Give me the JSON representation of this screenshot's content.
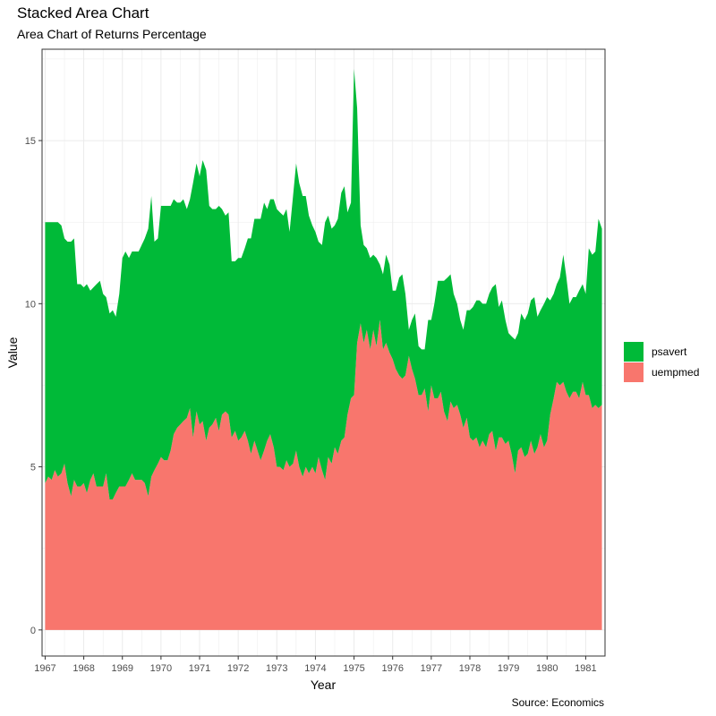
{
  "chart_data": {
    "type": "area",
    "stacked": true,
    "title": "Stacked Area Chart",
    "subtitle": "Area Chart of Returns Percentage",
    "caption": "Source: Economics",
    "xlabel": "Year",
    "ylabel": "Value",
    "xlim": [
      1966.92,
      1981.5
    ],
    "ylim": [
      -0.8,
      17.8
    ],
    "x_ticks": [
      1967,
      1968,
      1969,
      1970,
      1971,
      1972,
      1973,
      1974,
      1975,
      1976,
      1977,
      1978,
      1979,
      1980,
      1981
    ],
    "x_tick_labels": [
      "1967",
      "1968",
      "1969",
      "1970",
      "1971",
      "1972",
      "1973",
      "1974",
      "1975",
      "1976",
      "1977",
      "1978",
      "1979",
      "1980",
      "1981"
    ],
    "y_ticks": [
      0,
      5,
      10,
      15
    ],
    "y_tick_labels": [
      "0",
      "5",
      "10",
      "15"
    ],
    "grid": true,
    "legend_position": "right",
    "x": [
      1967.0,
      1967.08,
      1967.17,
      1967.25,
      1967.33,
      1967.42,
      1967.5,
      1967.58,
      1967.67,
      1967.75,
      1967.83,
      1967.92,
      1968.0,
      1968.08,
      1968.17,
      1968.25,
      1968.33,
      1968.42,
      1968.5,
      1968.58,
      1968.67,
      1968.75,
      1968.83,
      1968.92,
      1969.0,
      1969.08,
      1969.17,
      1969.25,
      1969.33,
      1969.42,
      1969.5,
      1969.58,
      1969.67,
      1969.75,
      1969.83,
      1969.92,
      1970.0,
      1970.08,
      1970.17,
      1970.25,
      1970.33,
      1970.42,
      1970.5,
      1970.58,
      1970.67,
      1970.75,
      1970.83,
      1970.92,
      1971.0,
      1971.08,
      1971.17,
      1971.25,
      1971.33,
      1971.42,
      1971.5,
      1971.58,
      1971.67,
      1971.75,
      1971.83,
      1971.92,
      1972.0,
      1972.08,
      1972.17,
      1972.25,
      1972.33,
      1972.42,
      1972.5,
      1972.58,
      1972.67,
      1972.75,
      1972.83,
      1972.92,
      1973.0,
      1973.08,
      1973.17,
      1973.25,
      1973.33,
      1973.42,
      1973.5,
      1973.58,
      1973.67,
      1973.75,
      1973.83,
      1973.92,
      1974.0,
      1974.08,
      1974.17,
      1974.25,
      1974.33,
      1974.42,
      1974.5,
      1974.58,
      1974.67,
      1974.75,
      1974.83,
      1974.92,
      1975.0,
      1975.08,
      1975.17,
      1975.25,
      1975.33,
      1975.42,
      1975.5,
      1975.58,
      1975.67,
      1975.75,
      1975.83,
      1975.92,
      1976.0,
      1976.08,
      1976.17,
      1976.25,
      1976.33,
      1976.42,
      1976.5,
      1976.58,
      1976.67,
      1976.75,
      1976.83,
      1976.92,
      1977.0,
      1977.08,
      1977.17,
      1977.25,
      1977.33,
      1977.42,
      1977.5,
      1977.58,
      1977.67,
      1977.75,
      1977.83,
      1977.92,
      1978.0,
      1978.08,
      1978.17,
      1978.25,
      1978.33,
      1978.42,
      1978.5,
      1978.58,
      1978.67,
      1978.75,
      1978.83,
      1978.92,
      1979.0,
      1979.08,
      1979.17,
      1979.25,
      1979.33,
      1979.42,
      1979.5,
      1979.58,
      1979.67,
      1979.75,
      1979.83,
      1979.92,
      1980.0,
      1980.08,
      1980.17,
      1980.25,
      1980.33,
      1980.42,
      1980.5,
      1980.58,
      1980.67,
      1980.75,
      1980.83,
      1980.92,
      1981.0,
      1981.08,
      1981.17,
      1981.25,
      1981.33,
      1981.42
    ],
    "series": [
      {
        "name": "uempmed",
        "color": "#F8766D",
        "values": [
          4.5,
          4.7,
          4.6,
          4.9,
          4.7,
          4.8,
          5.1,
          4.5,
          4.1,
          4.6,
          4.4,
          4.4,
          4.5,
          4.2,
          4.6,
          4.8,
          4.4,
          4.4,
          4.4,
          4.8,
          4.0,
          4.0,
          4.2,
          4.4,
          4.4,
          4.4,
          4.6,
          4.8,
          4.6,
          4.6,
          4.6,
          4.5,
          4.1,
          4.7,
          4.9,
          5.1,
          5.3,
          5.2,
          5.2,
          5.5,
          6.0,
          6.2,
          6.3,
          6.4,
          6.5,
          6.8,
          5.9,
          6.7,
          6.3,
          6.4,
          5.8,
          6.2,
          6.3,
          6.5,
          6.1,
          6.6,
          6.7,
          6.6,
          5.9,
          6.1,
          5.8,
          5.9,
          6.1,
          5.8,
          5.4,
          5.8,
          5.5,
          5.2,
          5.5,
          5.8,
          6.0,
          5.6,
          5.0,
          5.0,
          4.9,
          5.2,
          5.0,
          5.1,
          5.5,
          5.0,
          4.7,
          5.0,
          4.8,
          5.0,
          4.8,
          5.3,
          4.9,
          4.6,
          5.3,
          5.1,
          5.6,
          5.4,
          5.8,
          5.9,
          6.6,
          7.1,
          7.2,
          8.8,
          9.4,
          8.8,
          9.2,
          8.6,
          9.2,
          8.7,
          9.5,
          8.6,
          8.8,
          8.5,
          8.3,
          8.0,
          7.8,
          7.7,
          7.8,
          8.4,
          8.0,
          7.7,
          7.2,
          7.2,
          7.4,
          6.7,
          7.5,
          7.1,
          7.1,
          7.3,
          6.7,
          6.4,
          7.0,
          6.8,
          6.9,
          6.6,
          6.2,
          6.5,
          5.9,
          5.8,
          5.9,
          5.6,
          5.8,
          5.6,
          6.0,
          6.1,
          5.5,
          5.9,
          5.9,
          5.7,
          5.8,
          5.4,
          4.8,
          5.5,
          5.6,
          5.3,
          5.4,
          5.8,
          5.4,
          5.6,
          6.0,
          5.6,
          5.8,
          6.6,
          7.1,
          7.6,
          7.5,
          7.6,
          7.3,
          7.1,
          7.3,
          7.3,
          7.1,
          7.6,
          7.2,
          7.2,
          6.8,
          6.9,
          6.8,
          6.9
        ]
      },
      {
        "name": "psavert",
        "color": "#00BA38",
        "values": [
          8.0,
          7.8,
          7.9,
          7.6,
          7.8,
          7.6,
          6.9,
          7.4,
          7.8,
          7.4,
          6.2,
          6.2,
          6.0,
          6.4,
          5.8,
          5.7,
          6.2,
          6.3,
          5.9,
          5.4,
          5.7,
          5.8,
          5.4,
          5.9,
          7.0,
          7.2,
          6.8,
          6.8,
          7.0,
          7.0,
          7.2,
          7.5,
          8.2,
          8.6,
          7.0,
          6.9,
          7.7,
          7.8,
          7.8,
          7.5,
          7.2,
          6.9,
          6.8,
          6.8,
          6.4,
          6.4,
          7.8,
          7.6,
          7.6,
          8.0,
          8.3,
          6.8,
          6.6,
          6.4,
          6.9,
          6.3,
          6.0,
          6.2,
          5.4,
          5.2,
          5.6,
          5.5,
          5.6,
          6.2,
          6.6,
          6.8,
          7.1,
          7.4,
          7.6,
          7.1,
          7.2,
          7.6,
          7.9,
          7.8,
          7.8,
          7.7,
          7.2,
          8.2,
          8.8,
          8.7,
          8.6,
          8.3,
          7.9,
          7.4,
          7.4,
          6.6,
          6.9,
          7.9,
          7.4,
          7.2,
          6.8,
          7.2,
          7.6,
          7.7,
          6.2,
          6.0,
          10.0,
          7.2,
          3.0,
          3.0,
          2.5,
          2.8,
          2.3,
          2.7,
          1.7,
          2.3,
          2.7,
          2.7,
          2.1,
          2.4,
          3.0,
          3.2,
          2.5,
          0.8,
          1.5,
          2.0,
          1.5,
          1.4,
          1.2,
          2.8,
          2.0,
          2.9,
          3.6,
          3.4,
          4.0,
          4.4,
          3.9,
          3.5,
          3.1,
          2.9,
          3.0,
          3.3,
          3.9,
          4.1,
          4.2,
          4.5,
          4.2,
          4.4,
          4.3,
          4.4,
          5.1,
          4.0,
          4.2,
          3.8,
          3.3,
          3.6,
          4.1,
          3.6,
          4.1,
          4.2,
          4.3,
          4.3,
          4.8,
          4.0,
          3.8,
          4.4,
          4.4,
          3.5,
          3.2,
          3.0,
          3.3,
          3.9,
          3.5,
          2.9,
          2.9,
          2.9,
          3.3,
          3.0,
          3.1,
          4.5,
          4.7,
          4.7,
          5.8,
          5.4
        ]
      }
    ]
  },
  "legend": {
    "items": [
      {
        "label": "psavert",
        "color": "#00BA38"
      },
      {
        "label": "uempmed",
        "color": "#F8766D"
      }
    ]
  }
}
